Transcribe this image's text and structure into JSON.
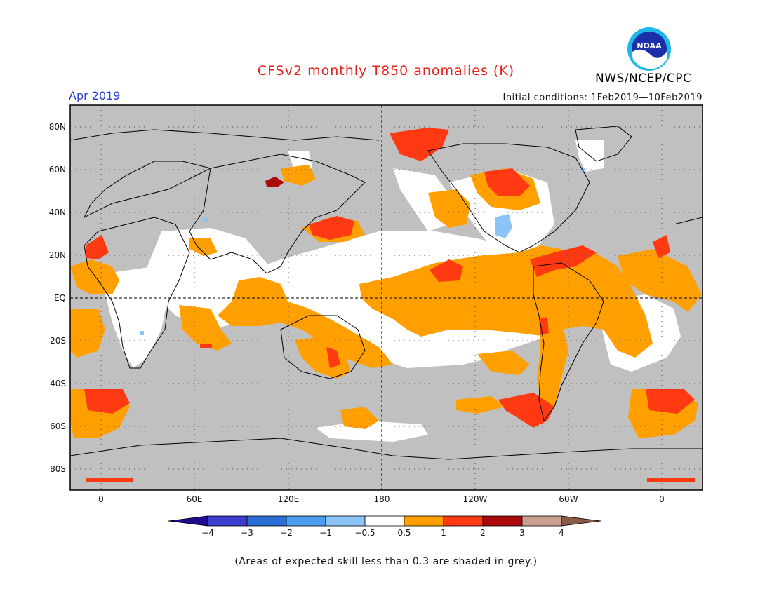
{
  "header": {
    "title": "CFSv2 monthly T850 anomalies (K)",
    "month": "Apr 2019",
    "initial_conditions": "Initial conditions: 1Feb2019—10Feb2019",
    "agency": "NWS/NCEP/CPC",
    "logo_text": "NOAA"
  },
  "axes": {
    "lat_labels": [
      "80N",
      "60N",
      "40N",
      "20N",
      "EQ",
      "20S",
      "40S",
      "60S",
      "80S"
    ],
    "lon_labels": [
      "0",
      "60E",
      "120E",
      "180",
      "120W",
      "60W",
      "0"
    ]
  },
  "colorbar": {
    "labels": [
      "−4",
      "−3",
      "−2",
      "−1",
      "−0.5",
      "0.5",
      "1",
      "2",
      "3",
      "4"
    ],
    "colors": [
      "#1e0a8c",
      "#3d3dd0",
      "#2b6fd6",
      "#4a9cf0",
      "#8cc4f7",
      "#ffffff",
      "#ff9f00",
      "#ff3a12",
      "#aa0a0a",
      "#c9a08f",
      "#8a5a48"
    ]
  },
  "map_colors": {
    "grey_low_skill": "#c0c0c0",
    "neutral": "#ffffff",
    "anomaly_0p5_1": "#ff9f00",
    "anomaly_1_2": "#ff3a12",
    "anomaly_2_3": "#aa0a0a",
    "anomaly_neg_0p5_neg_1": "#8cc4f7"
  },
  "footnote": "(Areas of expected skill less than 0.3 are shaded in grey.)"
}
